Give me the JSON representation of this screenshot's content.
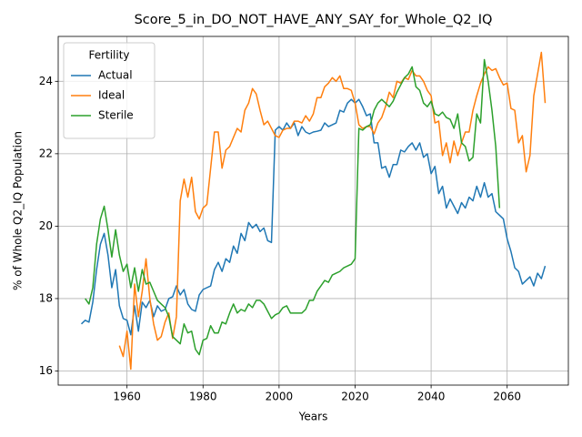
{
  "chart_data": {
    "type": "line",
    "title": "Score_5_in_DO_NOT_HAVE_ANY_SAY_for_Whole_Q2_IQ",
    "x_label": "Years",
    "y_label": "% of Whole Q2_IQ Population",
    "legend_title": "Fertility",
    "legend": "upper left",
    "grid": true,
    "xlim": [
      1941.9,
      2076.1
    ],
    "xticks": [
      1960,
      1980,
      2000,
      2020,
      2040,
      2060
    ],
    "ylim": [
      15.61,
      25.24
    ],
    "yticks": [
      16,
      18,
      20,
      22,
      24
    ],
    "x": [
      1948,
      1949,
      1950,
      1951,
      1952,
      1953,
      1954,
      1955,
      1956,
      1957,
      1958,
      1959,
      1960,
      1961,
      1962,
      1963,
      1964,
      1965,
      1966,
      1967,
      1968,
      1969,
      1970,
      1971,
      1972,
      1973,
      1974,
      1975,
      1976,
      1977,
      1978,
      1979,
      1980,
      1981,
      1982,
      1983,
      1984,
      1985,
      1986,
      1987,
      1988,
      1989,
      1990,
      1991,
      1992,
      1993,
      1994,
      1995,
      1996,
      1997,
      1998,
      1999,
      2000,
      2001,
      2002,
      2003,
      2004,
      2005,
      2006,
      2007,
      2008,
      2009,
      2010,
      2011,
      2012,
      2013,
      2014,
      2015,
      2016,
      2017,
      2018,
      2019,
      2020,
      2021,
      2022,
      2023,
      2024,
      2025,
      2026,
      2027,
      2028,
      2029,
      2030,
      2031,
      2032,
      2033,
      2034,
      2035,
      2036,
      2037,
      2038,
      2039,
      2040,
      2041,
      2042,
      2043,
      2044,
      2045,
      2046,
      2047,
      2048,
      2049,
      2050,
      2051,
      2052,
      2053,
      2054,
      2055,
      2056,
      2057,
      2058,
      2059,
      2060,
      2061,
      2062,
      2063,
      2064,
      2065,
      2066,
      2067,
      2068,
      2069,
      2070
    ],
    "series": [
      {
        "name": "Actual",
        "color": "#1f77b4",
        "values": [
          17.3,
          17.4,
          17.35,
          17.9,
          18.8,
          19.5,
          19.8,
          19.2,
          18.3,
          18.8,
          17.8,
          17.45,
          17.4,
          17.0,
          17.8,
          17.1,
          17.9,
          17.75,
          17.95,
          17.5,
          17.8,
          17.65,
          17.7,
          18.0,
          18.05,
          18.35,
          18.1,
          18.25,
          17.85,
          17.7,
          17.65,
          18.1,
          18.25,
          18.3,
          18.35,
          18.8,
          19.0,
          18.75,
          19.1,
          19.0,
          19.45,
          19.25,
          19.8,
          19.6,
          20.1,
          19.95,
          20.05,
          19.85,
          19.95,
          19.6,
          19.55,
          22.65,
          22.75,
          22.65,
          22.85,
          22.7,
          22.85,
          22.5,
          22.75,
          22.6,
          22.55,
          22.6,
          22.62,
          22.65,
          22.85,
          22.75,
          22.8,
          22.85,
          23.2,
          23.15,
          23.4,
          23.5,
          23.4,
          23.5,
          23.3,
          23.05,
          23.1,
          22.3,
          22.3,
          21.6,
          21.65,
          21.35,
          21.7,
          21.7,
          22.1,
          22.05,
          22.2,
          22.3,
          22.1,
          22.3,
          21.9,
          22.0,
          21.45,
          21.65,
          20.9,
          21.1,
          20.5,
          20.75,
          20.55,
          20.35,
          20.65,
          20.5,
          20.8,
          20.7,
          21.1,
          20.8,
          21.2,
          20.8,
          20.9,
          20.4,
          20.3,
          20.2,
          19.65,
          19.3,
          18.85,
          18.75,
          18.4,
          18.5,
          18.6,
          18.35,
          18.7,
          18.55,
          18.9
        ]
      },
      {
        "name": "Ideal",
        "color": "#ff7f0e",
        "values": [
          null,
          null,
          null,
          null,
          null,
          null,
          null,
          null,
          null,
          null,
          16.7,
          16.4,
          17.1,
          16.05,
          18.4,
          17.5,
          18.2,
          19.1,
          18.0,
          17.3,
          16.85,
          16.95,
          17.35,
          17.6,
          16.9,
          17.5,
          20.7,
          21.3,
          20.8,
          21.35,
          20.4,
          20.2,
          20.5,
          20.6,
          21.6,
          22.6,
          22.6,
          21.6,
          22.1,
          22.2,
          22.45,
          22.7,
          22.6,
          23.2,
          23.4,
          23.8,
          23.65,
          23.2,
          22.8,
          22.9,
          22.7,
          22.5,
          22.45,
          22.65,
          22.7,
          22.7,
          22.9,
          22.9,
          22.85,
          23.05,
          22.9,
          23.1,
          23.55,
          23.55,
          23.85,
          23.95,
          24.1,
          24.0,
          24.15,
          23.8,
          23.8,
          23.75,
          23.4,
          22.8,
          22.7,
          22.75,
          22.75,
          22.55,
          22.85,
          23.0,
          23.3,
          23.7,
          23.55,
          24.0,
          23.95,
          24.1,
          24.05,
          24.3,
          24.15,
          24.15,
          24.0,
          23.75,
          23.6,
          22.85,
          22.9,
          21.95,
          22.3,
          21.75,
          22.35,
          21.95,
          22.3,
          22.6,
          22.6,
          23.2,
          23.6,
          23.95,
          24.2,
          24.4,
          24.3,
          24.35,
          24.1,
          23.9,
          23.95,
          23.25,
          23.2,
          22.3,
          22.5,
          21.5,
          21.95,
          23.6,
          24.2,
          24.8,
          23.4
        ]
      },
      {
        "name": "Sterile",
        "color": "#2ca02c",
        "values": [
          null,
          18.0,
          17.85,
          18.3,
          19.5,
          20.2,
          20.55,
          19.9,
          19.15,
          19.9,
          19.2,
          18.75,
          18.95,
          18.3,
          18.85,
          18.2,
          18.8,
          18.4,
          18.45,
          18.2,
          17.95,
          17.85,
          17.75,
          17.5,
          16.95,
          16.85,
          16.75,
          17.3,
          17.05,
          17.1,
          16.6,
          16.45,
          16.85,
          16.9,
          17.25,
          17.05,
          17.05,
          17.35,
          17.3,
          17.6,
          17.85,
          17.6,
          17.7,
          17.65,
          17.85,
          17.75,
          17.95,
          17.95,
          17.85,
          17.65,
          17.45,
          17.55,
          17.6,
          17.75,
          17.8,
          17.6,
          17.6,
          17.6,
          17.6,
          17.7,
          17.95,
          17.95,
          18.2,
          18.35,
          18.5,
          18.45,
          18.65,
          18.7,
          18.75,
          18.85,
          18.9,
          18.95,
          19.1,
          22.7,
          22.65,
          22.75,
          22.8,
          23.2,
          23.4,
          23.5,
          23.4,
          23.3,
          23.45,
          23.7,
          23.9,
          24.1,
          24.2,
          24.4,
          23.85,
          23.75,
          23.4,
          23.3,
          23.45,
          23.1,
          23.05,
          23.15,
          23.0,
          22.95,
          22.7,
          23.1,
          22.3,
          22.2,
          21.8,
          21.9,
          23.1,
          22.85,
          24.6,
          24.0,
          23.2,
          22.2,
          20.5,
          null,
          null,
          null,
          null,
          null,
          null,
          null,
          null,
          null,
          null,
          null,
          null
        ]
      }
    ]
  }
}
